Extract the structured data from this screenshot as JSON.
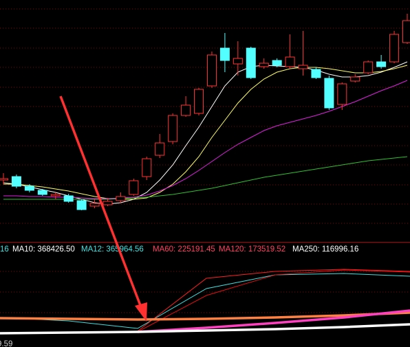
{
  "chart_data": [
    {
      "type": "candlestick",
      "up_color": "#ff3232",
      "down_color": "#54ffff",
      "ylim": [
        0,
        352
      ],
      "categories": [
        null,
        null,
        null,
        null,
        null,
        null,
        null,
        null,
        null,
        null,
        null,
        null,
        null,
        null,
        null,
        null,
        null,
        null,
        null,
        null,
        null,
        null,
        null,
        null,
        null,
        null,
        null,
        null,
        null,
        null,
        null,
        null
      ],
      "open": [
        90,
        95,
        81,
        75,
        67,
        67,
        60,
        52,
        54,
        60,
        69,
        95,
        126,
        146,
        184,
        187,
        227,
        282,
        259,
        282,
        255,
        264,
        255,
        252,
        251,
        238,
        200,
        234,
        246,
        262,
        262,
        290
      ],
      "close": [
        92,
        81,
        75,
        69,
        69,
        59,
        47,
        56,
        59,
        66,
        89,
        121,
        144,
        184,
        199,
        222,
        272,
        264,
        267,
        239,
        260,
        257,
        269,
        257,
        239,
        195,
        230,
        240,
        262,
        255,
        302,
        322
      ],
      "high": [
        100,
        98,
        84,
        77,
        72,
        70,
        62,
        62,
        64,
        72,
        92,
        124,
        157,
        187,
        212,
        224,
        277,
        304,
        292,
        284,
        267,
        267,
        302,
        307,
        254,
        242,
        232,
        244,
        264,
        272,
        307,
        332
      ],
      "low": [
        84,
        78,
        72,
        67,
        62,
        57,
        46,
        49,
        52,
        57,
        67,
        90,
        122,
        142,
        182,
        184,
        224,
        247,
        242,
        237,
        252,
        254,
        252,
        242,
        237,
        192,
        192,
        232,
        244,
        252,
        260,
        288
      ],
      "series": [
        {
          "color": "#ffffff",
          "values": [
            86,
            84,
            80,
            76,
            72,
            67,
            62,
            57,
            55,
            57,
            62,
            72,
            90,
            112,
            140,
            167,
            197,
            227,
            247,
            255,
            257,
            256,
            255,
            254,
            250,
            244,
            240,
            240,
            242,
            247,
            254,
            262
          ]
        },
        {
          "color": "#ffff66",
          "values": [
            84,
            84,
            82,
            80,
            77,
            74,
            70,
            66,
            63,
            62,
            62,
            64,
            72,
            84,
            102,
            124,
            152,
            177,
            202,
            222,
            237,
            247,
            252,
            254,
            254,
            252,
            249,
            246,
            246,
            248,
            252,
            257
          ]
        },
        {
          "color": "#e020e0",
          "values": [
            67,
            67,
            66,
            66,
            65,
            65,
            64,
            63,
            63,
            64,
            65,
            68,
            74,
            82,
            92,
            104,
            117,
            130,
            142,
            152,
            162,
            169,
            174,
            179,
            184,
            190,
            197,
            204,
            212,
            220,
            227,
            235
          ]
        },
        {
          "color": "#30c030",
          "values": [
            62,
            62,
            62,
            62,
            62,
            62,
            62,
            62,
            62,
            63,
            64,
            65,
            67,
            69,
            72,
            75,
            78,
            82,
            86,
            90,
            94,
            97,
            100,
            103,
            106,
            109,
            112,
            115,
            118,
            120,
            122,
            124
          ]
        }
      ]
    },
    {
      "type": "line",
      "xlim": [
        0,
        596
      ],
      "ylim": [
        0,
        135
      ],
      "x": [
        0,
        100,
        200,
        300,
        400,
        500,
        596
      ],
      "series": [
        {
          "color": "#40e0e0",
          "values": [
            43,
            38,
            27,
            85,
            105,
            107,
            103
          ]
        },
        {
          "color": "#ff2020",
          "values": [
            null,
            null,
            23,
            100,
            110,
            113,
            110
          ]
        },
        {
          "color": "#e01010",
          "values": [
            null,
            null,
            22,
            75,
            105,
            112,
            109
          ]
        },
        {
          "color": "#ff8040",
          "values": [
            42,
            41,
            40,
            41,
            43,
            46,
            50
          ]
        },
        {
          "color": "#ff40c0",
          "values": [
            null,
            null,
            22,
            28,
            35,
            43,
            53
          ]
        },
        {
          "color": "#ffffff",
          "values": [
            20,
            21,
            22,
            24,
            26,
            29,
            33
          ]
        }
      ]
    }
  ],
  "ma_labels": [
    "16",
    "MA10: 368426.50",
    "MA12: 365964.56",
    "MA60: 225191.45",
    "MA120: 173519.52",
    "MA250: 116996.16"
  ],
  "corner_label": "9.59"
}
